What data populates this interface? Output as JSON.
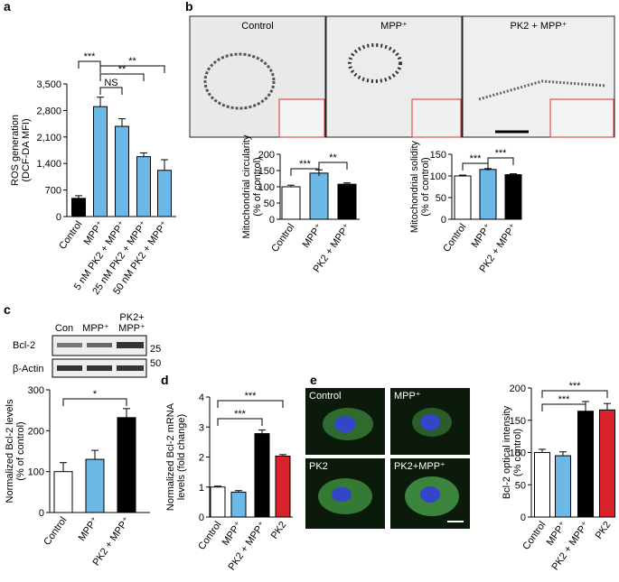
{
  "panel_labels": [
    "a",
    "b",
    "c",
    "d",
    "e"
  ],
  "images_b": [
    "Control",
    "MPP⁺",
    "PK2 + MPP⁺"
  ],
  "images_e": [
    "Control",
    "MPP⁺",
    "PK2",
    "PK2+MPP⁺"
  ],
  "blot": {
    "lanes": [
      "Con",
      "MPP⁺",
      "PK2+ MPP⁺"
    ],
    "rows": [
      "Bcl-2",
      "β-Actin"
    ],
    "markers": [
      "25",
      "50"
    ]
  },
  "chart_data": [
    {
      "type": "bar",
      "ylabel": [
        "ROS generation",
        "(DCF-DA MFI)"
      ],
      "categories": [
        "Control",
        "MPP⁺",
        "5 nM PK2 + MPP⁺",
        "25 nM PK2 + MPP⁺",
        "50 nM PK2 + MPP⁺"
      ],
      "values": [
        480,
        2900,
        2380,
        1580,
        1220
      ],
      "errors": [
        70,
        250,
        200,
        100,
        280
      ],
      "colors": [
        "#000000",
        "#6cb8e6",
        "#6cb8e6",
        "#6cb8e6",
        "#6cb8e6"
      ],
      "ylim": [
        0,
        3500
      ],
      "yticks": [
        0,
        700,
        {
          "value": 1400,
          "label": "1,400"
        },
        {
          "value": 2100,
          "label": "2,100"
        },
        {
          "value": 2800,
          "label": "2,800"
        },
        {
          "value": 3500,
          "label": "3,500"
        }
      ],
      "annotations": [
        "***",
        "**",
        "**",
        "NS"
      ]
    },
    {
      "type": "bar",
      "ylabel": [
        "Mitochondrial circularity",
        "(% of control)"
      ],
      "categories": [
        "Control",
        "MPP⁺",
        "PK2 + MPP⁺"
      ],
      "values": [
        100,
        142,
        108
      ],
      "errors": [
        5,
        10,
        4
      ],
      "colors": [
        "#ffffff",
        "#6cb8e6",
        "#000000"
      ],
      "ylim": [
        0,
        200
      ],
      "yticks": [
        0,
        50,
        100,
        150,
        200
      ],
      "annotations": [
        "***",
        "**"
      ]
    },
    {
      "type": "bar",
      "ylabel": [
        "Mitochondrial solidity",
        "(% of control)"
      ],
      "categories": [
        "Control",
        "MPP⁺",
        "PK2 + MPP⁺"
      ],
      "values": [
        100,
        115,
        103
      ],
      "errors": [
        2,
        2,
        2
      ],
      "colors": [
        "#ffffff",
        "#6cb8e6",
        "#000000"
      ],
      "ylim": [
        0,
        150
      ],
      "yticks": [
        0,
        50,
        100,
        150
      ],
      "annotations": [
        "***",
        "***"
      ]
    },
    {
      "type": "bar",
      "ylabel": [
        "Normalized Bcl-2 levels",
        "(% of control)"
      ],
      "categories": [
        "Control",
        "MPP⁺",
        "PK2 + MPP⁺"
      ],
      "values": [
        100,
        130,
        232
      ],
      "errors": [
        22,
        22,
        22
      ],
      "colors": [
        "#ffffff",
        "#6cb8e6",
        "#000000"
      ],
      "ylim": [
        0,
        300
      ],
      "yticks": [
        0,
        100,
        200,
        300
      ],
      "annotations": [
        "*"
      ]
    },
    {
      "type": "bar",
      "ylabel": [
        "Normalized Bcl-2 mRNA",
        "levels (fold change)"
      ],
      "categories": [
        "Control",
        "MPP⁺",
        "PK2 + MPP⁺",
        "PK2"
      ],
      "values": [
        1.0,
        0.83,
        2.78,
        2.03
      ],
      "errors": [
        0.03,
        0.05,
        0.12,
        0.05
      ],
      "colors": [
        "#ffffff",
        "#6cb8e6",
        "#000000",
        "#d8232a"
      ],
      "ylim": [
        0,
        4
      ],
      "yticks": [
        0,
        1,
        2,
        3,
        4
      ],
      "annotations": [
        "***",
        "***"
      ]
    },
    {
      "type": "bar",
      "ylabel": [
        "Bcl-2 optical intensity",
        "(% control)"
      ],
      "categories": [
        "Control",
        "MPP⁺",
        "PK2 + MPP⁺",
        "PK2"
      ],
      "values": [
        100,
        95,
        164,
        166
      ],
      "errors": [
        5,
        6,
        15,
        10
      ],
      "colors": [
        "#ffffff",
        "#6cb8e6",
        "#000000",
        "#d8232a"
      ],
      "ylim": [
        0,
        200
      ],
      "yticks": [
        0,
        50,
        100,
        150,
        200
      ],
      "annotations": [
        "***",
        "***"
      ]
    }
  ]
}
